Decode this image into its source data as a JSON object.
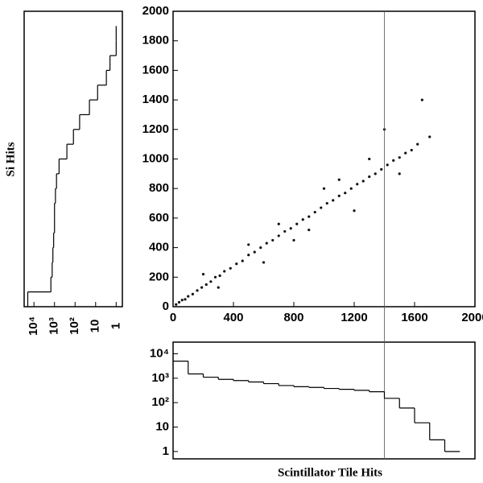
{
  "chart_data": [
    {
      "type": "scatter",
      "color": "#111111",
      "x": [
        20,
        40,
        60,
        80,
        100,
        130,
        160,
        190,
        220,
        250,
        280,
        310,
        340,
        380,
        420,
        460,
        500,
        540,
        580,
        620,
        660,
        700,
        740,
        780,
        820,
        860,
        900,
        940,
        980,
        1020,
        1060,
        1100,
        1140,
        1180,
        1220,
        1260,
        1300,
        1340,
        1380,
        1420,
        1460,
        1500,
        1540,
        1580,
        1620,
        300,
        500,
        700,
        900,
        1100,
        1300,
        1500,
        200,
        600,
        1000,
        1400,
        1700,
        800,
        1200,
        1650
      ],
      "values": [
        15,
        30,
        45,
        50,
        70,
        85,
        110,
        130,
        150,
        170,
        200,
        210,
        240,
        260,
        290,
        310,
        350,
        370,
        400,
        430,
        450,
        480,
        510,
        530,
        560,
        590,
        610,
        640,
        670,
        700,
        720,
        750,
        770,
        800,
        830,
        850,
        880,
        900,
        930,
        960,
        990,
        1010,
        1040,
        1060,
        1100,
        130,
        420,
        560,
        520,
        860,
        1000,
        900,
        220,
        300,
        800,
        1200,
        1150,
        450,
        650,
        1400
      ],
      "xlim": [
        0,
        2000
      ],
      "xticks": [
        0,
        400,
        800,
        1200,
        1600,
        2000
      ],
      "ylim": [
        0,
        2000
      ],
      "yticks": [
        0,
        200,
        400,
        600,
        800,
        1000,
        1200,
        1400,
        1600,
        1800,
        2000
      ],
      "vline_x": 1400
    },
    {
      "type": "histogram",
      "orientation": "vertical",
      "log_scale": true,
      "xlabel": "Scintillator Tile Hits",
      "bins": [
        0,
        100,
        200,
        300,
        400,
        500,
        600,
        700,
        800,
        900,
        1000,
        1100,
        1200,
        1300,
        1400,
        1500,
        1600,
        1700,
        1800,
        1900
      ],
      "counts": [
        5000,
        1500,
        1100,
        900,
        800,
        700,
        600,
        500,
        450,
        420,
        380,
        350,
        320,
        280,
        150,
        60,
        15,
        3,
        1
      ],
      "xlim": [
        0,
        2000
      ],
      "ylim": [
        0.5,
        30000
      ],
      "yticks": [
        1,
        10,
        {
          "value": 100,
          "label": "10²"
        },
        {
          "value": 1000,
          "label": "10³"
        },
        {
          "value": 10000,
          "label": "10⁴"
        }
      ]
    },
    {
      "type": "histogram",
      "orientation": "horizontal",
      "log_scale": true,
      "ylabel": "Si Hits",
      "bins": [
        0,
        100,
        200,
        300,
        400,
        500,
        600,
        700,
        800,
        900,
        1000,
        1100,
        1200,
        1300,
        1400,
        1500,
        1600,
        1700,
        1800,
        1900
      ],
      "counts": [
        20000,
        1500,
        1300,
        1200,
        1100,
        1000,
        1000,
        900,
        800,
        600,
        250,
        120,
        60,
        20,
        8,
        3,
        2,
        1,
        1
      ],
      "ylim": [
        0,
        2000
      ],
      "xlim": [
        30000,
        0.5
      ],
      "xticks": [
        {
          "value": 10000,
          "label": "10⁴"
        },
        {
          "value": 1000,
          "label": "10³"
        },
        {
          "value": 100,
          "label": "10²"
        },
        10,
        1
      ]
    }
  ]
}
